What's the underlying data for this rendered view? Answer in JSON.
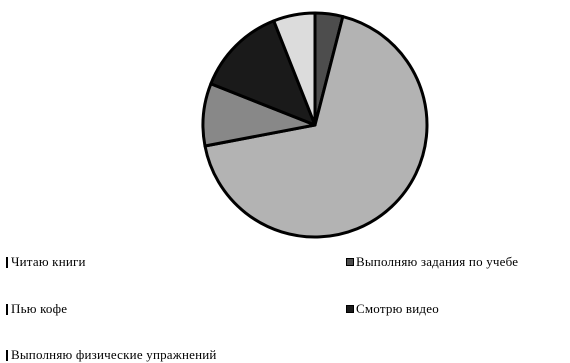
{
  "chart_data": {
    "type": "pie",
    "title": "",
    "slices": [
      {
        "label": "Выполняю задания по учебе",
        "value": 4,
        "color": "#4d4d4d"
      },
      {
        "label": "Читаю книги",
        "value": 68,
        "color": "#b3b3b3"
      },
      {
        "label": "Пью кофе",
        "value": 9,
        "color": "#888888"
      },
      {
        "label": "Смотрю видео",
        "value": 13,
        "color": "#1a1a1a"
      },
      {
        "label": "Выполняю физические упражнений",
        "value": 6,
        "color": "#dcdcdc"
      }
    ],
    "legend_placement": "bottom"
  },
  "legend": {
    "read_books": "Читаю книги",
    "study_tasks": "Выполняю задания по учебе",
    "drink_coffee": "Пью кофе",
    "watch_video": "Смотрю видео",
    "exercise": "Выполняю физические упражнений"
  }
}
